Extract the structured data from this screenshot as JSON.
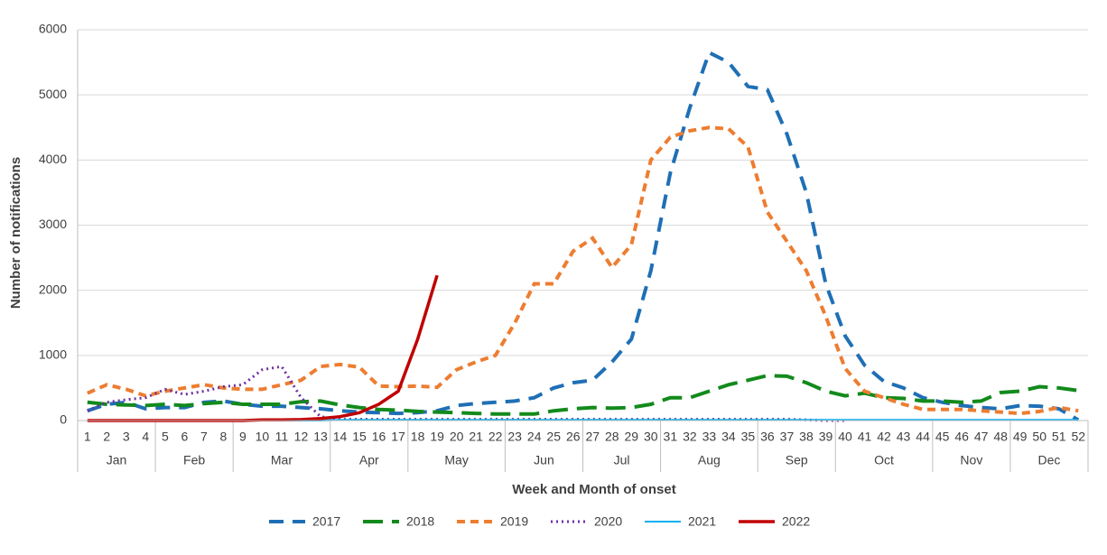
{
  "chart_data": {
    "type": "line",
    "y_label": "Number of notifications",
    "x_label": "Week and Month of onset",
    "categories": [
      "1",
      "2",
      "3",
      "4",
      "5",
      "6",
      "7",
      "8",
      "9",
      "10",
      "11",
      "12",
      "13",
      "14",
      "15",
      "16",
      "17",
      "18",
      "19",
      "20",
      "21",
      "22",
      "23",
      "24",
      "25",
      "26",
      "27",
      "28",
      "29",
      "30",
      "31",
      "32",
      "33",
      "34",
      "35",
      "36",
      "37",
      "38",
      "39",
      "40",
      "41",
      "42",
      "43",
      "44",
      "45",
      "46",
      "47",
      "48",
      "49",
      "50",
      "51",
      "52"
    ],
    "months": [
      {
        "name": "Jan",
        "weeks": 4
      },
      {
        "name": "Feb",
        "weeks": 4
      },
      {
        "name": "Mar",
        "weeks": 5
      },
      {
        "name": "Apr",
        "weeks": 4
      },
      {
        "name": "May",
        "weeks": 5
      },
      {
        "name": "Jun",
        "weeks": 4
      },
      {
        "name": "Jul",
        "weeks": 4
      },
      {
        "name": "Aug",
        "weeks": 5
      },
      {
        "name": "Sep",
        "weeks": 4
      },
      {
        "name": "Oct",
        "weeks": 5
      },
      {
        "name": "Nov",
        "weeks": 4
      },
      {
        "name": "Dec",
        "weeks": 4
      }
    ],
    "ylim": [
      0,
      6000
    ],
    "yticks": [
      0,
      1000,
      2000,
      3000,
      4000,
      5000,
      6000
    ],
    "grid": true,
    "legend": "bottom",
    "series": [
      {
        "name": "2017",
        "color": "#1f6fb5",
        "dash": "dashed",
        "values": [
          150,
          250,
          280,
          180,
          200,
          200,
          280,
          300,
          250,
          220,
          220,
          200,
          180,
          150,
          130,
          120,
          110,
          120,
          150,
          230,
          260,
          280,
          300,
          350,
          500,
          580,
          620,
          900,
          1250,
          2300,
          3800,
          4800,
          5650,
          5500,
          5130,
          5080,
          4400,
          3500,
          2100,
          1300,
          850,
          600,
          500,
          350,
          280,
          230,
          200,
          180,
          230,
          220,
          180,
          10
        ]
      },
      {
        "name": "2018",
        "color": "#138a1c",
        "dash": "long-dashed",
        "values": [
          280,
          250,
          240,
          230,
          250,
          230,
          260,
          280,
          250,
          250,
          250,
          290,
          300,
          240,
          200,
          170,
          160,
          140,
          130,
          120,
          110,
          100,
          100,
          100,
          150,
          180,
          200,
          190,
          200,
          250,
          350,
          350,
          450,
          550,
          620,
          690,
          680,
          580,
          450,
          380,
          420,
          350,
          340,
          300,
          300,
          280,
          300,
          430,
          450,
          520,
          500,
          460
        ]
      },
      {
        "name": "2019",
        "color": "#ed7d31",
        "dash": "short-dashed",
        "values": [
          420,
          550,
          480,
          380,
          450,
          500,
          550,
          500,
          480,
          480,
          550,
          620,
          830,
          860,
          820,
          530,
          520,
          530,
          510,
          780,
          900,
          1000,
          1500,
          2100,
          2100,
          2600,
          2800,
          2350,
          2700,
          4000,
          4350,
          4450,
          4500,
          4480,
          4200,
          3200,
          2750,
          2300,
          1600,
          800,
          450,
          350,
          250,
          170,
          170,
          170,
          150,
          130,
          110,
          140,
          200,
          150
        ]
      },
      {
        "name": "2020",
        "color": "#7030a0",
        "dash": "dotted",
        "values": [
          150,
          280,
          320,
          350,
          480,
          400,
          450,
          520,
          550,
          780,
          830,
          350,
          60,
          20,
          20,
          20,
          20,
          20,
          20,
          20,
          20,
          20,
          20,
          20,
          20,
          20,
          20,
          20,
          20,
          20,
          20,
          20,
          20,
          20,
          20,
          20,
          20,
          10,
          0,
          0,
          null,
          null,
          null,
          null,
          null,
          null,
          null,
          null,
          null,
          null,
          null,
          null
        ]
      },
      {
        "name": "2021",
        "color": "#00b0f0",
        "dash": "solid",
        "values": [
          0,
          0,
          0,
          0,
          0,
          0,
          0,
          0,
          0,
          0,
          0,
          0,
          0,
          10,
          10,
          10,
          10,
          10,
          10,
          10,
          10,
          10,
          10,
          10,
          10,
          10,
          10,
          10,
          10,
          10,
          10,
          10,
          10,
          10,
          10,
          10,
          10,
          10,
          10,
          10,
          10,
          10,
          10,
          10,
          10,
          10,
          10,
          10,
          10,
          10,
          10,
          10
        ]
      },
      {
        "name": "2022",
        "color": "#c00000",
        "dash": "solid-thick",
        "values": [
          0,
          0,
          0,
          0,
          0,
          0,
          0,
          0,
          0,
          10,
          10,
          15,
          30,
          60,
          120,
          250,
          450,
          1250,
          2230,
          null,
          null,
          null,
          null,
          null,
          null,
          null,
          null,
          null,
          null,
          null,
          null,
          null,
          null,
          null,
          null,
          null,
          null,
          null,
          null,
          null,
          null,
          null,
          null,
          null,
          null,
          null,
          null,
          null,
          null,
          null,
          null,
          null
        ]
      }
    ]
  }
}
